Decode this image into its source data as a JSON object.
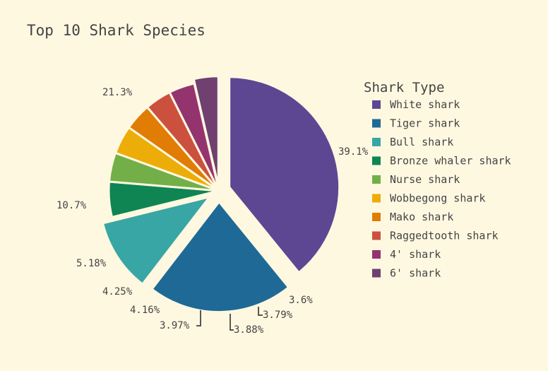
{
  "chart_data": {
    "type": "pie",
    "title": "Top 10 Shark Species",
    "legend_title": "Shark Type",
    "legend_position": "right",
    "slices": [
      {
        "label": "White shark",
        "value": 39.1,
        "text": "39.1%",
        "color": "#5d4792"
      },
      {
        "label": "Tiger shark",
        "value": 21.3,
        "text": "21.3%",
        "color": "#1f6996"
      },
      {
        "label": "Bull shark",
        "value": 10.7,
        "text": "10.7%",
        "color": "#38a6a5"
      },
      {
        "label": "Bronze whaler shark",
        "value": 5.18,
        "text": "5.18%",
        "color": "#0f8553"
      },
      {
        "label": "Nurse shark",
        "value": 4.25,
        "text": "4.25%",
        "color": "#73af48"
      },
      {
        "label": "Wobbegong shark",
        "value": 4.16,
        "text": "4.16%",
        "color": "#edad08"
      },
      {
        "label": "Mako shark",
        "value": 3.97,
        "text": "3.97%",
        "color": "#e17c05"
      },
      {
        "label": "Raggedtooth shark",
        "value": 3.88,
        "text": "3.88%",
        "color": "#cc503e"
      },
      {
        "label": "4' shark",
        "value": 3.79,
        "text": "3.79%",
        "color": "#94346e"
      },
      {
        "label": "6' shark",
        "value": 3.6,
        "text": "3.6%",
        "color": "#6f4070"
      }
    ]
  }
}
